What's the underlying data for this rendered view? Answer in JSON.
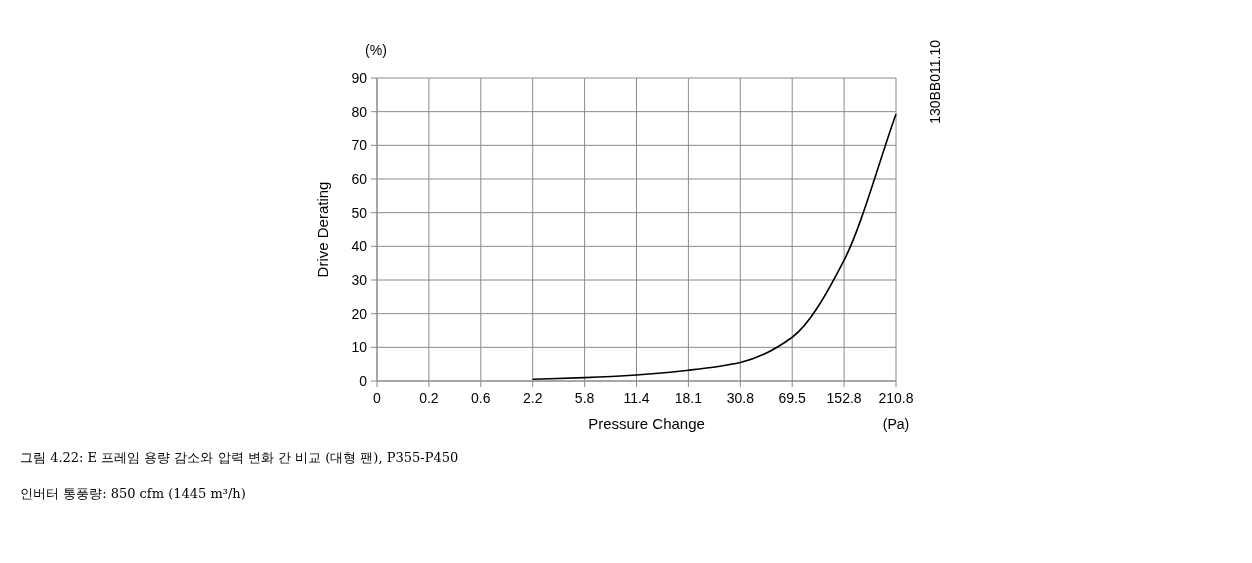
{
  "chart_data": {
    "type": "line",
    "xlabel": "Pressure Change",
    "ylabel": "Drive Derating",
    "annotations": [
      "(%)",
      "(Pa)",
      "130BB011.10",
      "그림 4.22: E 프레임 용량 감소와 압력 변화 간 비교 (대형 팬), P355-P450",
      "인버터 통풍량: 850 cfm (1445 m³/h)"
    ],
    "categories": [
      "0",
      "0.2",
      "0.6",
      "2.2",
      "5.8",
      "11.4",
      "18.1",
      "30.8",
      "69.5",
      "152.8",
      "210.8"
    ],
    "series": [
      {
        "color": "#000000",
        "values": [
          null,
          null,
          null,
          0.5,
          1.0,
          1.8,
          3.2,
          5.5,
          13,
          35.9,
          79.3
        ]
      }
    ],
    "ylim": [
      0,
      90
    ],
    "yticks": [
      0,
      10,
      20,
      30,
      40,
      50,
      60,
      70,
      80,
      90
    ],
    "grid": true,
    "marker": "none",
    "line_style": "solid"
  }
}
